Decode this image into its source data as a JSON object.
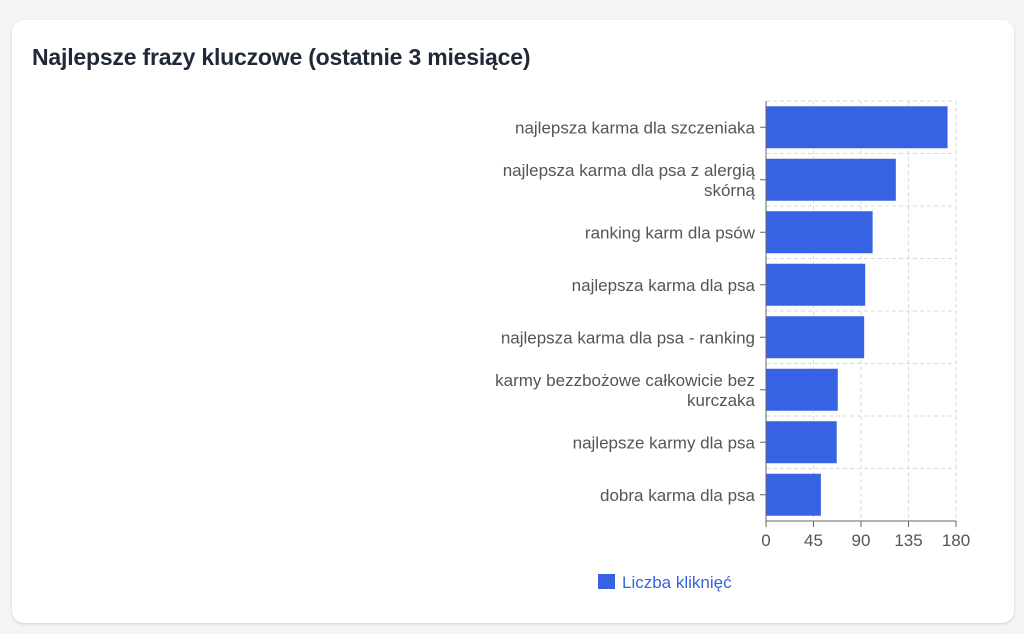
{
  "card": {
    "title": "Najlepsze frazy kluczowe (ostatnie 3 miesiące)"
  },
  "chart_data": {
    "type": "bar",
    "orientation": "horizontal",
    "categories": [
      [
        "najlepsza karma dla szczeniaka"
      ],
      [
        "najlepsza karma dla psa z alergią",
        "skórną"
      ],
      [
        "ranking karm dla psów"
      ],
      [
        "najlepsza karma dla psa"
      ],
      [
        "najlepsza karma dla psa - ranking"
      ],
      [
        "karmy bezzbożowe całkowicie bez",
        "kurczaka"
      ],
      [
        "najlepsze karmy dla psa"
      ],
      [
        "dobra karma dla psa"
      ]
    ],
    "series": [
      {
        "name": "Liczba kliknięć",
        "color": "#3662e3",
        "values": [
          172,
          123,
          101,
          94,
          93,
          68,
          67,
          52
        ]
      }
    ],
    "xlim": [
      0,
      180
    ],
    "xticks": [
      0,
      45,
      90,
      135,
      180
    ],
    "grid": true,
    "grid_style": "dashed",
    "legend_position": "bottom-center",
    "colors": {
      "bar": "#3662e3",
      "legend_text": "#3662e3",
      "axis": "#666666",
      "grid": "#d9d9d9",
      "label": "#555555"
    }
  }
}
